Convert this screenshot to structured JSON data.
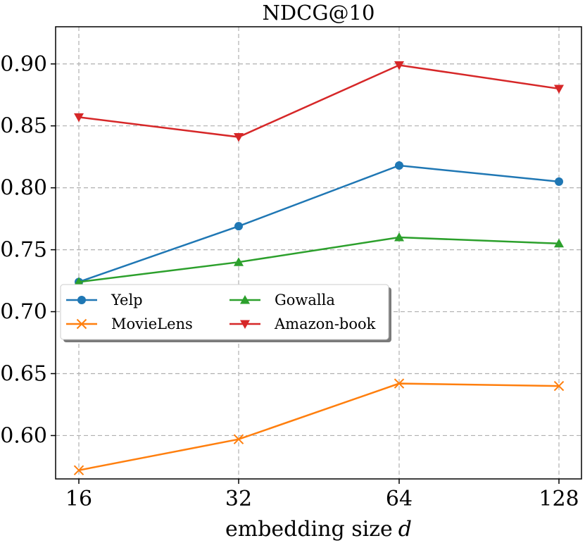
{
  "chart_data": {
    "type": "line",
    "title": "NDCG@10",
    "xlabel": "embedding size",
    "xlabel_var": "d",
    "categories": [
      "16",
      "32",
      "64",
      "128"
    ],
    "ylim": [
      0.565,
      0.93
    ],
    "yticks": [
      "0.60",
      "0.65",
      "0.70",
      "0.75",
      "0.80",
      "0.85",
      "0.90"
    ],
    "grid": true,
    "legend_position": "center-left",
    "series": [
      {
        "name": "Yelp",
        "color": "#1f77b4",
        "marker": "circle",
        "values": [
          0.724,
          0.769,
          0.818,
          0.805
        ]
      },
      {
        "name": "MovieLens",
        "color": "#ff7f0e",
        "marker": "x",
        "values": [
          0.572,
          0.597,
          0.642,
          0.64
        ]
      },
      {
        "name": "Gowalla",
        "color": "#2ca02c",
        "marker": "triangle-up",
        "values": [
          0.724,
          0.74,
          0.76,
          0.755
        ]
      },
      {
        "name": "Amazon-book",
        "color": "#d62728",
        "marker": "triangle-down",
        "values": [
          0.857,
          0.841,
          0.899,
          0.88
        ]
      }
    ]
  }
}
